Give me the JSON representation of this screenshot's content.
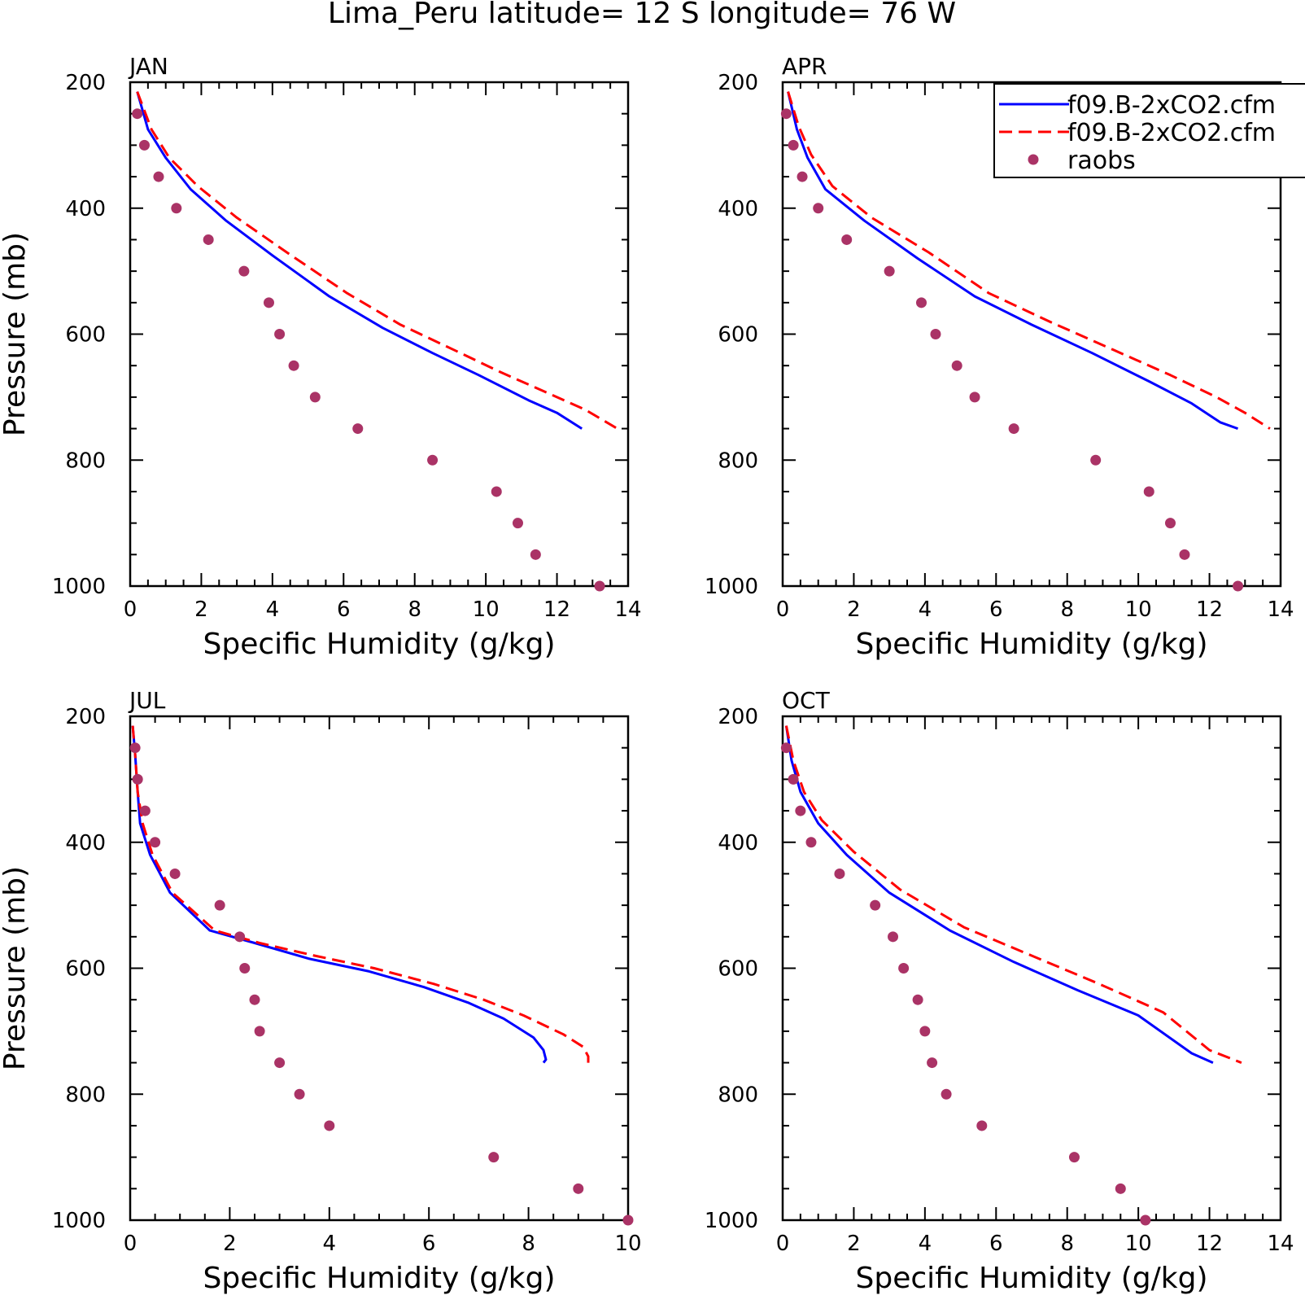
{
  "title": "Lima_Peru  latitude= 12 S longitude= 76 W",
  "colors": {
    "model1": "#0000ff",
    "model2": "#ff0000",
    "raobs": "#aa3366",
    "axes": "#000000"
  },
  "legend": {
    "placement": "top-right of APR panel",
    "entries": [
      {
        "label": "f09.B-2xCO2.cfm",
        "style": "solid",
        "color": "#0000ff"
      },
      {
        "label": "f09.B-2xCO2.cfm",
        "style": "dashed",
        "color": "#ff0000"
      },
      {
        "label": "raobs",
        "style": "marker",
        "color": "#aa3366"
      }
    ]
  },
  "chart_data": [
    {
      "type": "line",
      "panel_label": "JAN",
      "xlabel": "Specific Humidity (g/kg)",
      "ylabel": "Pressure (mb)",
      "xlim": [
        0,
        14
      ],
      "ylim": [
        200,
        1000
      ],
      "y_inverted": true,
      "xticks": [
        "0",
        "2",
        "4",
        "6",
        "8",
        "10",
        "12",
        "14"
      ],
      "yticks": [
        "200",
        "400",
        "600",
        "800",
        "1000"
      ],
      "series": [
        {
          "style": "solid",
          "color": "#0000ff",
          "x": [
            0.2,
            0.5,
            1.0,
            1.7,
            2.7,
            4.0,
            5.6,
            7.1,
            8.5,
            9.8,
            11.2,
            12.0,
            12.7
          ],
          "y": [
            215,
            275,
            320,
            370,
            420,
            475,
            540,
            590,
            630,
            665,
            705,
            725,
            750
          ]
        },
        {
          "style": "dashed",
          "color": "#ff0000",
          "x": [
            0.2,
            0.6,
            1.1,
            1.9,
            3.0,
            4.4,
            6.1,
            7.6,
            9.1,
            10.4,
            11.8,
            12.8,
            13.7
          ],
          "y": [
            215,
            275,
            320,
            365,
            415,
            470,
            535,
            585,
            625,
            660,
            695,
            720,
            750
          ]
        },
        {
          "style": "marker",
          "color": "#aa3366",
          "x": [
            0.2,
            0.4,
            0.8,
            1.3,
            2.2,
            3.2,
            3.9,
            4.2,
            4.6,
            5.2,
            6.4,
            8.5,
            10.3,
            10.9,
            11.4,
            13.2
          ],
          "y": [
            250,
            300,
            350,
            400,
            450,
            500,
            550,
            600,
            650,
            700,
            750,
            800,
            850,
            900,
            950,
            1000
          ]
        }
      ]
    },
    {
      "type": "line",
      "panel_label": "APR",
      "xlabel": "Specific Humidity (g/kg)",
      "ylabel": "",
      "xlim": [
        0,
        14
      ],
      "ylim": [
        200,
        1000
      ],
      "y_inverted": true,
      "xticks": [
        "0",
        "2",
        "4",
        "6",
        "8",
        "10",
        "12",
        "14"
      ],
      "yticks": [
        "200",
        "400",
        "600",
        "800",
        "1000"
      ],
      "series": [
        {
          "style": "solid",
          "color": "#0000ff",
          "x": [
            0.15,
            0.4,
            0.7,
            1.2,
            2.3,
            3.8,
            5.4,
            7.0,
            8.7,
            10.3,
            11.5,
            12.3,
            12.8
          ],
          "y": [
            215,
            275,
            320,
            370,
            420,
            480,
            540,
            585,
            630,
            675,
            710,
            740,
            750
          ]
        },
        {
          "style": "dashed",
          "color": "#ff0000",
          "x": [
            0.15,
            0.45,
            0.8,
            1.4,
            2.5,
            4.1,
            5.8,
            7.5,
            9.3,
            10.9,
            12.2,
            13.0,
            13.7
          ],
          "y": [
            215,
            270,
            315,
            365,
            415,
            470,
            535,
            580,
            625,
            665,
            700,
            725,
            750
          ]
        },
        {
          "style": "marker",
          "color": "#aa3366",
          "x": [
            0.1,
            0.3,
            0.55,
            1.0,
            1.8,
            3.0,
            3.9,
            4.3,
            4.9,
            5.4,
            6.5,
            8.8,
            10.3,
            10.9,
            11.3,
            12.8
          ],
          "y": [
            250,
            300,
            350,
            400,
            450,
            500,
            550,
            600,
            650,
            700,
            750,
            800,
            850,
            900,
            950,
            1000
          ]
        }
      ]
    },
    {
      "type": "line",
      "panel_label": "JUL",
      "xlabel": "Specific Humidity (g/kg)",
      "ylabel": "Pressure (mb)",
      "xlim": [
        0,
        10
      ],
      "ylim": [
        200,
        1000
      ],
      "y_inverted": true,
      "xticks": [
        "0",
        "2",
        "4",
        "6",
        "8",
        "10"
      ],
      "yticks": [
        "200",
        "400",
        "600",
        "800",
        "1000"
      ],
      "series": [
        {
          "style": "solid",
          "color": "#0000ff",
          "x": [
            0.05,
            0.1,
            0.15,
            0.2,
            0.4,
            0.8,
            1.6,
            2.5,
            3.6,
            4.8,
            5.9,
            6.8,
            7.5,
            8.1,
            8.3,
            8.35,
            8.3
          ],
          "y": [
            215,
            260,
            320,
            370,
            420,
            480,
            540,
            560,
            585,
            605,
            630,
            655,
            680,
            710,
            730,
            745,
            750
          ]
        },
        {
          "style": "dashed",
          "color": "#ff0000",
          "x": [
            0.05,
            0.1,
            0.15,
            0.25,
            0.45,
            0.85,
            1.7,
            2.6,
            3.7,
            4.9,
            6.1,
            7.1,
            7.9,
            8.7,
            9.1,
            9.2,
            9.2
          ],
          "y": [
            215,
            260,
            320,
            370,
            420,
            480,
            540,
            560,
            580,
            600,
            625,
            650,
            675,
            705,
            725,
            740,
            750
          ]
        },
        {
          "style": "marker",
          "color": "#aa3366",
          "x": [
            0.1,
            0.15,
            0.3,
            0.5,
            0.9,
            1.8,
            2.2,
            2.3,
            2.5,
            2.6,
            3.0,
            3.4,
            4.0,
            7.3,
            9.0,
            10.0
          ],
          "y": [
            250,
            300,
            350,
            400,
            450,
            500,
            550,
            600,
            650,
            700,
            750,
            800,
            850,
            900,
            950,
            1000
          ]
        }
      ]
    },
    {
      "type": "line",
      "panel_label": "OCT",
      "xlabel": "Specific Humidity (g/kg)",
      "ylabel": "",
      "xlim": [
        0,
        14
      ],
      "ylim": [
        200,
        1000
      ],
      "y_inverted": true,
      "xticks": [
        "0",
        "2",
        "4",
        "6",
        "8",
        "10",
        "12",
        "14"
      ],
      "yticks": [
        "200",
        "400",
        "600",
        "800",
        "1000"
      ],
      "series": [
        {
          "style": "solid",
          "color": "#0000ff",
          "x": [
            0.1,
            0.25,
            0.5,
            1.0,
            1.8,
            3.0,
            4.7,
            6.5,
            8.3,
            10.0,
            11.5,
            12.1
          ],
          "y": [
            215,
            270,
            320,
            370,
            420,
            480,
            540,
            590,
            635,
            675,
            735,
            750
          ]
        },
        {
          "style": "dashed",
          "color": "#ff0000",
          "x": [
            0.1,
            0.3,
            0.6,
            1.1,
            2.0,
            3.3,
            5.1,
            7.0,
            8.9,
            10.7,
            12.0,
            12.9
          ],
          "y": [
            215,
            270,
            320,
            365,
            415,
            475,
            535,
            580,
            625,
            670,
            730,
            750
          ]
        },
        {
          "style": "marker",
          "color": "#aa3366",
          "x": [
            0.1,
            0.3,
            0.5,
            0.8,
            1.6,
            2.6,
            3.1,
            3.4,
            3.8,
            4.0,
            4.2,
            4.6,
            5.6,
            8.2,
            9.5,
            10.2
          ],
          "y": [
            250,
            300,
            350,
            400,
            450,
            500,
            550,
            600,
            650,
            700,
            750,
            800,
            850,
            900,
            950,
            1000
          ]
        }
      ]
    }
  ]
}
